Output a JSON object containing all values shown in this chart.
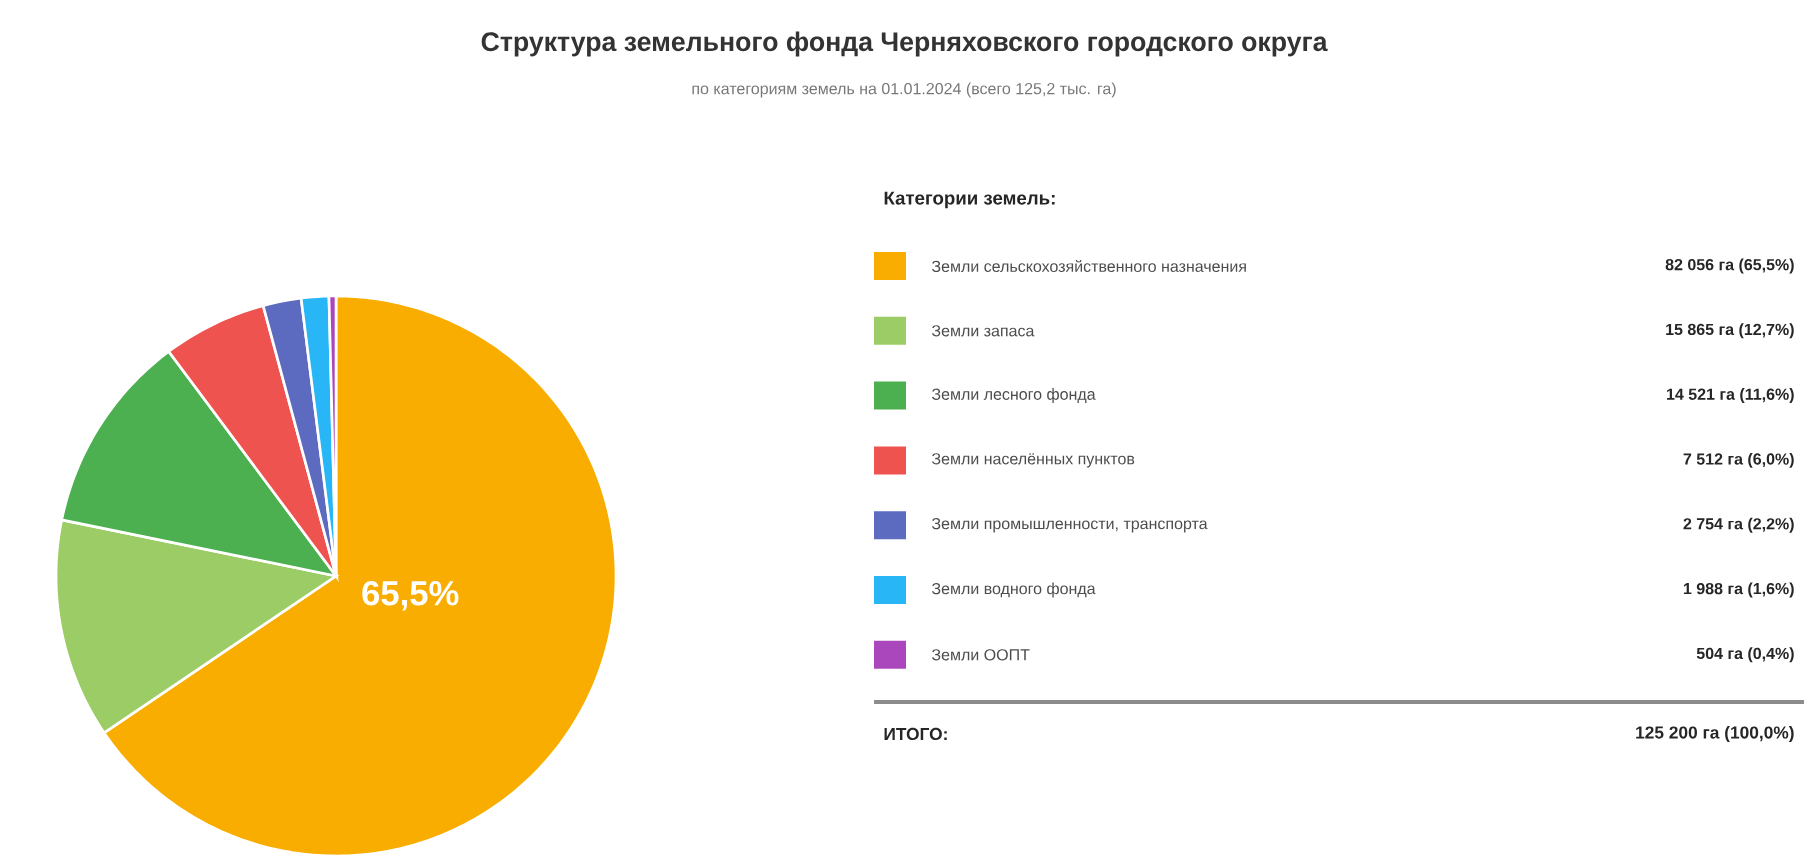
{
  "chart_data": {
    "type": "pie",
    "title": "Структура земельного фонда Черняховского городского округа",
    "subtitle": "по категориям земель на 01.01.2024 (всего 125,2 тыс. га)",
    "legend_title": "Категории земель:",
    "legend": "right",
    "categories": [
      "Земли сельскохозяйственного назначения",
      "Земли запаса",
      "Земли лесного фонда",
      "Земли населённых пунктов",
      "Земли промышленности, транспорта",
      "Земли водного фонда",
      "Земли ООПТ"
    ],
    "values": [
      82056,
      15865,
      14521,
      7512,
      2754,
      1988,
      504
    ],
    "value_labels": [
      "82 056 га (65,5%)",
      "15 865 га (12,7%)",
      "14 521 га (11,6%)",
      "7 512 га (6,0%)",
      "2 754 га (2,2%)",
      "1 988 га (1,6%)",
      "504 га (0,4%)"
    ],
    "colors": [
      "#f9ad00",
      "#9ccc65",
      "#4caf50",
      "#ef5350",
      "#5c6bc0",
      "#29b6f6",
      "#ab47bc"
    ],
    "annotations": [
      "65,5%",
      "ИТОГО:",
      "125 200 га (100,0%)"
    ]
  }
}
